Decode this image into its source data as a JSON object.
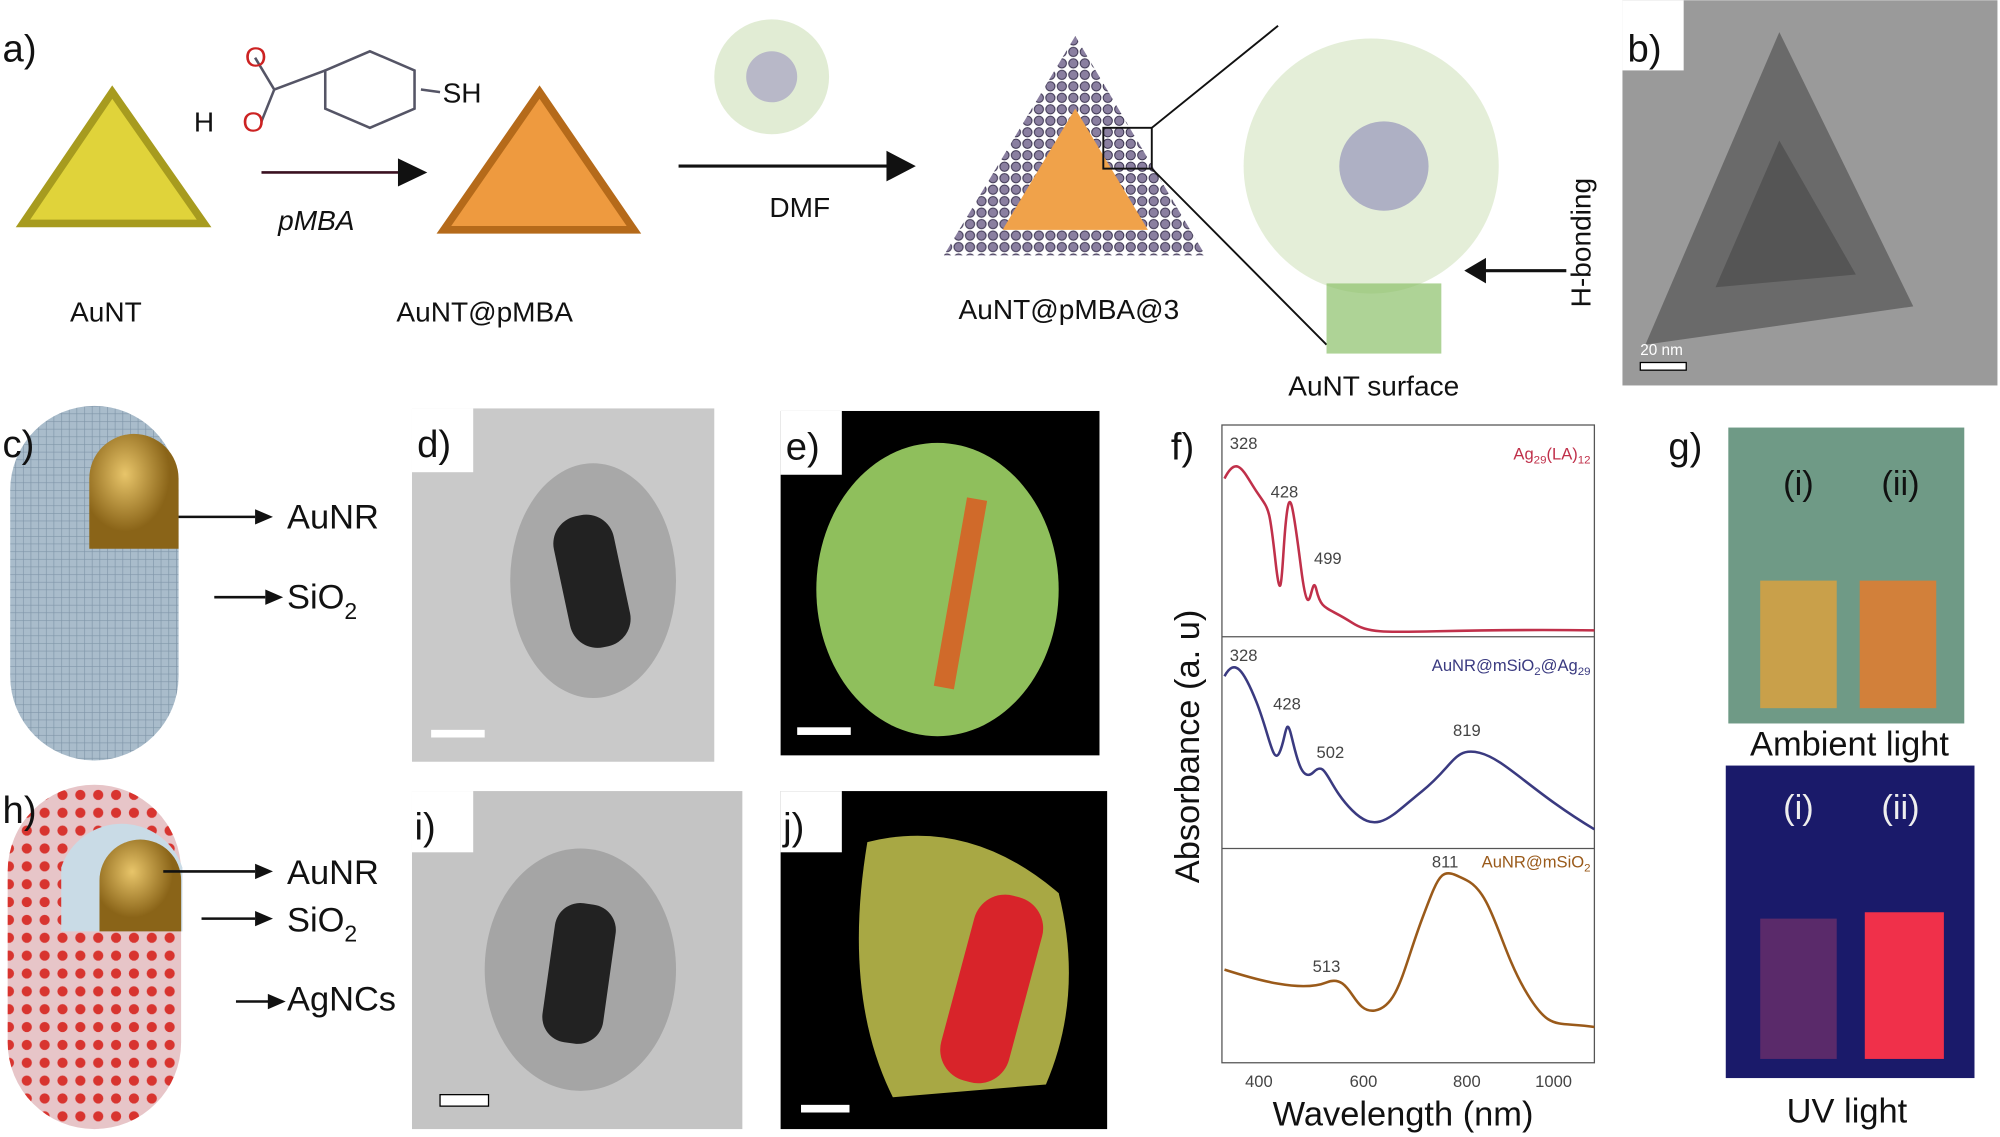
{
  "panels": {
    "a": {
      "label": "a)",
      "reagent": "pMBA",
      "solvent": "DMF",
      "atoms": [
        "O",
        "H",
        "O",
        "SH"
      ],
      "nodes": [
        "AuNT",
        "AuNT@pMBA",
        "AuNT@pMBA@3"
      ],
      "surface": "AuNT surface",
      "interaction": "H-bonding"
    },
    "b": {
      "label": "b)",
      "scale_bar": "20 nm"
    },
    "c": {
      "label": "c)",
      "core": "AuNR",
      "shell": {
        "base": "SiO",
        "sub": "2"
      }
    },
    "d": {
      "label": "d)"
    },
    "e": {
      "label": "e)"
    },
    "f": {
      "label": "f)",
      "y_label": "Absorbance (a. u)",
      "x_label": "Wavelength (nm)",
      "x_ticks": [
        "400",
        "600",
        "800",
        "1000"
      ],
      "spectra": [
        {
          "name": [
            {
              "base": "Ag",
              "sub": "29"
            },
            {
              "base": "(LA)",
              "sub": "12"
            }
          ],
          "peaks": [
            "328",
            "428",
            "499"
          ]
        },
        {
          "name": [
            {
              "base": "AuNR@mSiO",
              "sub": "2"
            },
            {
              "base": "@Ag",
              "sub": "29"
            }
          ],
          "peaks": [
            "328",
            "428",
            "502",
            "819"
          ]
        },
        {
          "name": [
            {
              "base": "AuNR@mSiO",
              "sub": "2"
            }
          ],
          "peaks": [
            "811",
            "513"
          ]
        }
      ]
    },
    "g": {
      "label": "g)",
      "vials": [
        "(i)",
        "(ii)"
      ],
      "captions": [
        "Ambient light",
        "UV light"
      ]
    },
    "h": {
      "label": "h)",
      "core": "AuNR",
      "shell": {
        "base": "SiO",
        "sub": "2"
      },
      "outer": "AgNCs"
    },
    "i": {
      "label": "i)"
    },
    "j": {
      "label": "j)"
    }
  }
}
